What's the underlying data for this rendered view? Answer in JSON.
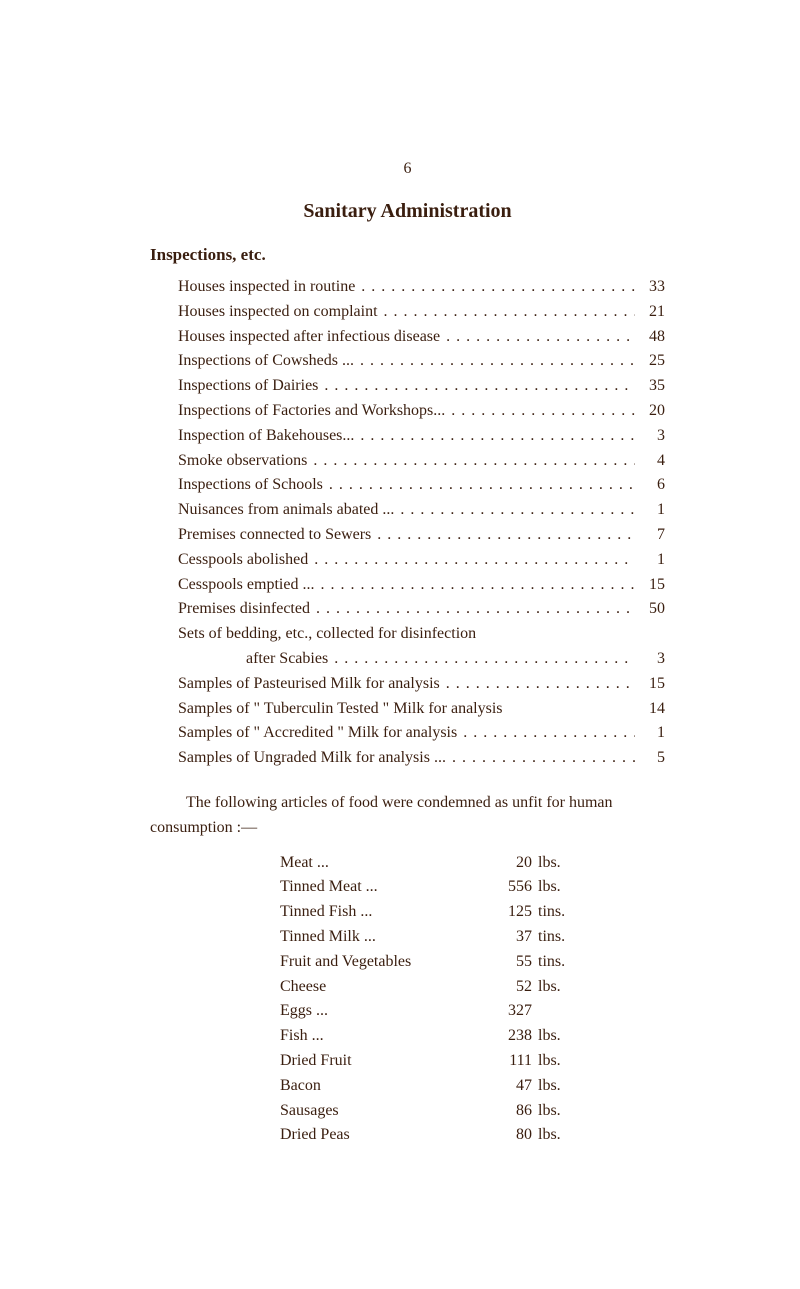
{
  "colors": {
    "background": "#ffffff",
    "text": "#3a1e0f"
  },
  "page_number": "6",
  "title": "Sanitary Administration",
  "section_heading": "Inspections, etc.",
  "inspection_rows": [
    {
      "label": "Houses inspected in routine",
      "value": "33"
    },
    {
      "label": "Houses inspected on complaint",
      "value": "21"
    },
    {
      "label": "Houses inspected after infectious disease",
      "value": "48"
    },
    {
      "label": "Inspections of Cowsheds ...",
      "value": "25"
    },
    {
      "label": "Inspections of Dairies",
      "value": "35"
    },
    {
      "label": "Inspections of Factories and Workshops...",
      "value": "20"
    },
    {
      "label": "Inspection of Bakehouses...",
      "value": "3"
    },
    {
      "label": "Smoke observations",
      "value": "4"
    },
    {
      "label": "Inspections of Schools",
      "value": "6"
    },
    {
      "label": "Nuisances from animals abated ...",
      "value": "1"
    },
    {
      "label": "Premises connected to Sewers",
      "value": "7"
    },
    {
      "label": "Cesspools abolished",
      "value": "1"
    },
    {
      "label": "Cesspools emptied ...",
      "value": "15"
    },
    {
      "label": "Premises disinfected",
      "value": "50"
    },
    {
      "label": "Sets of bedding, etc., collected for disinfection",
      "value": ""
    },
    {
      "label": "after Scabies",
      "value": "3",
      "indent": true
    },
    {
      "label": "Samples of Pasteurised Milk for analysis",
      "value": "15"
    },
    {
      "label": "Samples of \" Tuberculin Tested \" Milk for analysis",
      "value": "14",
      "nodots": true
    },
    {
      "label": "Samples of \" Accredited \" Milk for analysis",
      "value": "1"
    },
    {
      "label": "Samples of Ungraded Milk for analysis ...",
      "value": "5"
    }
  ],
  "paragraph": "The following articles of food were condemned as unfit for human consumption :—",
  "food_rows": [
    {
      "label": "Meat ...",
      "qty": "20",
      "unit": "lbs."
    },
    {
      "label": "Tinned Meat   ...",
      "qty": "556",
      "unit": "lbs."
    },
    {
      "label": "Tinned Fish    ...",
      "qty": "125",
      "unit": "tins."
    },
    {
      "label": "Tinned Milk    ...",
      "qty": "37",
      "unit": "tins."
    },
    {
      "label": "Fruit and Vegetables",
      "qty": "55",
      "unit": "tins."
    },
    {
      "label": "Cheese",
      "qty": "52",
      "unit": "lbs."
    },
    {
      "label": "Eggs ...",
      "qty": "327",
      "unit": ""
    },
    {
      "label": "Fish ...",
      "qty": "238",
      "unit": "lbs."
    },
    {
      "label": "Dried Fruit",
      "qty": "111",
      "unit": "lbs."
    },
    {
      "label": "Bacon",
      "qty": "47",
      "unit": "lbs."
    },
    {
      "label": "Sausages",
      "qty": "86",
      "unit": "lbs."
    },
    {
      "label": "Dried Peas",
      "qty": "80",
      "unit": "lbs."
    }
  ]
}
